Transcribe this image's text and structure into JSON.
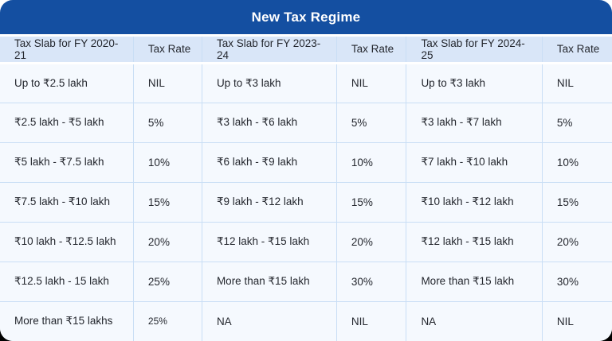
{
  "title": "New Tax Regime",
  "colors": {
    "title_bar_bg": "#144FA1",
    "header_row_bg": "#D9E6F8",
    "body_bg": "#F5F9FE",
    "grid_line": "#C9DEF5",
    "text_dark": "#24272E",
    "title_text": "#FFFFFF"
  },
  "table": {
    "columns": [
      {
        "label": "Tax Slab for FY 2020-21"
      },
      {
        "label": "Tax Rate"
      },
      {
        "label": "Tax Slab for FY 2023-24"
      },
      {
        "label": "Tax Rate"
      },
      {
        "label": "Tax Slab for FY 2024-25"
      },
      {
        "label": "Tax Rate"
      }
    ],
    "rows": [
      [
        "Up to ₹2.5 lakh",
        "NIL",
        "Up to ₹3 lakh",
        "NIL",
        "Up to ₹3 lakh",
        "NIL"
      ],
      [
        "₹2.5 lakh - ₹5 lakh",
        "5%",
        "₹3 lakh - ₹6 lakh",
        "5%",
        "₹3 lakh - ₹7 lakh",
        "5%"
      ],
      [
        "₹5 lakh - ₹7.5 lakh",
        "10%",
        "₹6 lakh - ₹9 lakh",
        "10%",
        "₹7 lakh - ₹10 lakh",
        "10%"
      ],
      [
        "₹7.5 lakh - ₹10 lakh",
        "15%",
        "₹9 lakh - ₹12 lakh",
        "15%",
        "₹10 lakh - ₹12 lakh",
        "15%"
      ],
      [
        "₹10 lakh - ₹12.5 lakh",
        "20%",
        "₹12 lakh - ₹15 lakh",
        "20%",
        "₹12 lakh - ₹15 lakh",
        "20%"
      ],
      [
        "₹12.5 lakh - 15 lakh",
        "25%",
        "More than ₹15 lakh",
        "30%",
        "More than ₹15 lakh",
        "30%"
      ],
      [
        "More than ₹15 lakhs",
        "25%",
        "NA",
        "NIL",
        "NA",
        "NIL"
      ]
    ]
  }
}
